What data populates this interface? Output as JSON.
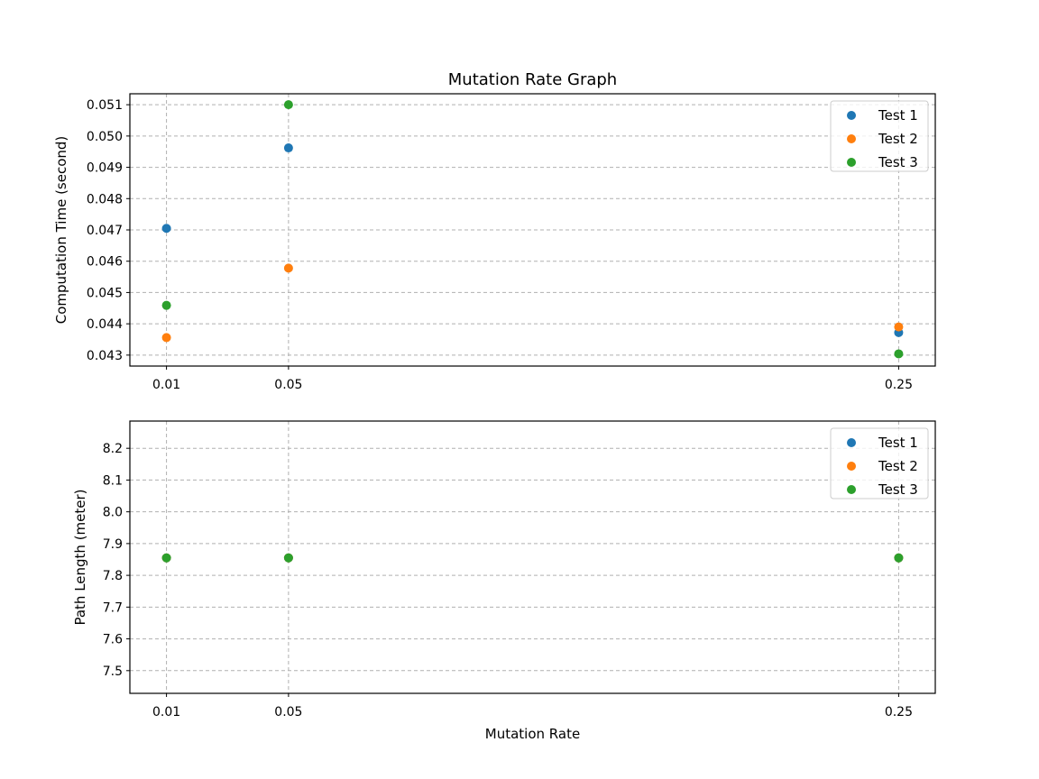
{
  "chart_data": [
    {
      "type": "scatter",
      "title": "Mutation Rate Graph",
      "xlabel": "",
      "ylabel": "Computation Time (second)",
      "x_ticks": [
        "0.01",
        "0.05",
        "0.25"
      ],
      "x_values": [
        0.01,
        0.05,
        0.25
      ],
      "xlim": [
        -0.002,
        0.262
      ],
      "y_ticks": [
        "0.043",
        "0.044",
        "0.045",
        "0.046",
        "0.047",
        "0.048",
        "0.049",
        "0.050",
        "0.051"
      ],
      "ylim": [
        0.04265,
        0.05135
      ],
      "grid": true,
      "legend_position": "top-right",
      "series": [
        {
          "name": "Test 1",
          "color": "#1f77b4",
          "x": [
            0.01,
            0.05,
            0.25
          ],
          "y": [
            0.04705,
            0.04962,
            0.04372
          ]
        },
        {
          "name": "Test 2",
          "color": "#ff7f0e",
          "x": [
            0.01,
            0.05,
            0.25
          ],
          "y": [
            0.04356,
            0.04578,
            0.0439
          ]
        },
        {
          "name": "Test 3",
          "color": "#2ca02c",
          "x": [
            0.01,
            0.05,
            0.25
          ],
          "y": [
            0.04459,
            0.051,
            0.04304
          ]
        }
      ]
    },
    {
      "type": "scatter",
      "title": "",
      "xlabel": "Mutation Rate",
      "ylabel": "Path Length (meter)",
      "x_ticks": [
        "0.01",
        "0.05",
        "0.25"
      ],
      "x_values": [
        0.01,
        0.05,
        0.25
      ],
      "xlim": [
        -0.002,
        0.262
      ],
      "y_ticks": [
        "7.5",
        "7.6",
        "7.7",
        "7.8",
        "7.9",
        "8.0",
        "8.1",
        "8.2"
      ],
      "ylim": [
        7.4285,
        8.2857
      ],
      "grid": true,
      "legend_position": "top-right",
      "series": [
        {
          "name": "Test 1",
          "color": "#1f77b4",
          "x": [
            0.01,
            0.05,
            0.25
          ],
          "y": [
            7.855,
            7.855,
            7.855
          ]
        },
        {
          "name": "Test 2",
          "color": "#ff7f0e",
          "x": [
            0.01,
            0.05,
            0.25
          ],
          "y": [
            7.855,
            7.855,
            7.855
          ]
        },
        {
          "name": "Test 3",
          "color": "#2ca02c",
          "x": [
            0.01,
            0.05,
            0.25
          ],
          "y": [
            7.855,
            7.855,
            7.855
          ]
        }
      ]
    }
  ]
}
